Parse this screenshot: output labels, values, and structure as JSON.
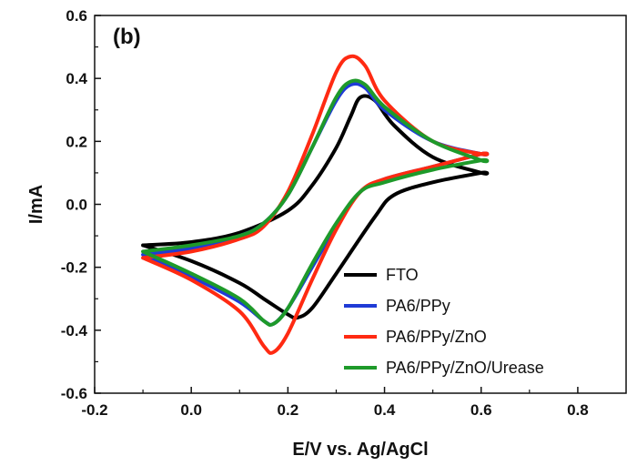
{
  "chart_data": {
    "type": "line",
    "panel_label": "(b)",
    "xlabel": "E/V vs. Ag/AgCl",
    "ylabel": "I/mA",
    "xlim": [
      -0.2,
      0.9
    ],
    "ylim": [
      -0.6,
      0.6
    ],
    "x_ticks": [
      -0.2,
      0.0,
      0.2,
      0.4,
      0.6,
      0.8
    ],
    "x_tick_labels": [
      "-0.2",
      "0.0",
      "0.2",
      "0.4",
      "0.6",
      "0.8"
    ],
    "y_ticks": [
      -0.6,
      -0.4,
      -0.2,
      0.0,
      0.2,
      0.4,
      0.6
    ],
    "y_tick_labels": [
      "-0.6",
      "-0.4",
      "-0.2",
      "0.0",
      "0.2",
      "0.4",
      "0.6"
    ],
    "grid": false,
    "legend_position": "bottom-right",
    "series": [
      {
        "name": "FTO",
        "color": "#000000",
        "x": [
          -0.1,
          0.0,
          0.1,
          0.2,
          0.25,
          0.3,
          0.33,
          0.35,
          0.38,
          0.42,
          0.5,
          0.6,
          0.6,
          0.5,
          0.42,
          0.38,
          0.3,
          0.25,
          0.22,
          0.2,
          0.15,
          0.1,
          0.0,
          -0.1
        ],
        "y": [
          -0.13,
          -0.12,
          -0.09,
          -0.02,
          0.06,
          0.18,
          0.28,
          0.34,
          0.33,
          0.25,
          0.15,
          0.1,
          0.1,
          0.07,
          0.03,
          -0.04,
          -0.22,
          -0.33,
          -0.36,
          -0.35,
          -0.3,
          -0.25,
          -0.18,
          -0.13
        ]
      },
      {
        "name": "PA6/PPy",
        "color": "#1f3bd6",
        "x": [
          -0.1,
          0.0,
          0.1,
          0.15,
          0.2,
          0.25,
          0.3,
          0.33,
          0.36,
          0.4,
          0.5,
          0.6,
          0.6,
          0.5,
          0.4,
          0.35,
          0.3,
          0.25,
          0.2,
          0.17,
          0.15,
          0.1,
          0.0,
          -0.1
        ],
        "y": [
          -0.16,
          -0.14,
          -0.1,
          -0.06,
          0.03,
          0.18,
          0.33,
          0.38,
          0.37,
          0.3,
          0.2,
          0.16,
          0.16,
          0.12,
          0.08,
          0.04,
          -0.07,
          -0.2,
          -0.33,
          -0.38,
          -0.37,
          -0.31,
          -0.23,
          -0.16
        ]
      },
      {
        "name": "PA6/PPy/ZnO",
        "color": "#ff2a12",
        "x": [
          -0.1,
          0.0,
          0.1,
          0.15,
          0.2,
          0.25,
          0.3,
          0.33,
          0.36,
          0.4,
          0.5,
          0.6,
          0.6,
          0.5,
          0.4,
          0.35,
          0.3,
          0.25,
          0.2,
          0.17,
          0.15,
          0.1,
          0.0,
          -0.1
        ],
        "y": [
          -0.17,
          -0.15,
          -0.11,
          -0.07,
          0.04,
          0.22,
          0.42,
          0.47,
          0.44,
          0.33,
          0.2,
          0.16,
          0.16,
          0.12,
          0.08,
          0.04,
          -0.08,
          -0.24,
          -0.41,
          -0.47,
          -0.45,
          -0.34,
          -0.24,
          -0.17
        ]
      },
      {
        "name": "PA6/PPy/ZnO/Urease",
        "color": "#1e9a2a",
        "x": [
          -0.1,
          0.0,
          0.1,
          0.15,
          0.2,
          0.25,
          0.3,
          0.33,
          0.36,
          0.4,
          0.5,
          0.6,
          0.6,
          0.5,
          0.4,
          0.35,
          0.3,
          0.25,
          0.2,
          0.17,
          0.15,
          0.1,
          0.0,
          -0.1
        ],
        "y": [
          -0.15,
          -0.13,
          -0.1,
          -0.06,
          0.03,
          0.18,
          0.34,
          0.39,
          0.38,
          0.31,
          0.2,
          0.14,
          0.14,
          0.11,
          0.07,
          0.04,
          -0.06,
          -0.19,
          -0.33,
          -0.38,
          -0.37,
          -0.3,
          -0.22,
          -0.15
        ]
      }
    ]
  }
}
